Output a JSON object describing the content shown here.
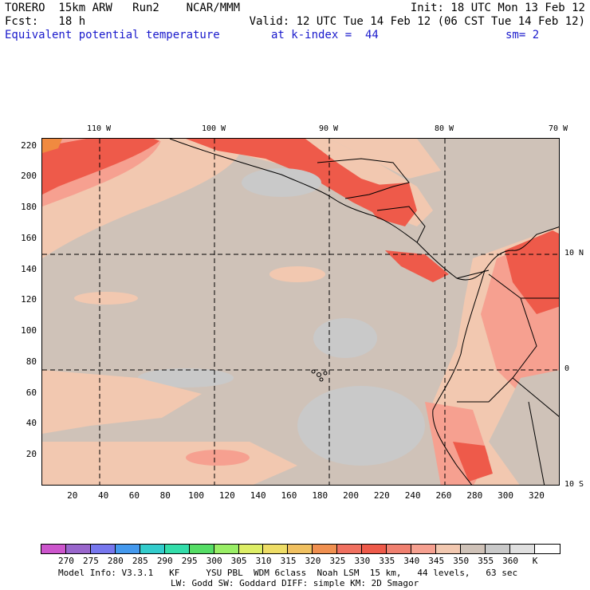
{
  "header": {
    "line1_left": "TORERO  15km ARW   Run2    NCAR/MMM",
    "line1_right": "Init: 18 UTC Mon 13 Feb 12",
    "line2_left": "Fcst:   18 h",
    "line2_right": "Valid: 12 UTC Tue 14 Feb 12 (06 CST Tue 14 Feb 12)",
    "field": "Equivalent potential temperature",
    "level": "at k-index =  44",
    "smooth": "sm= 2"
  },
  "map": {
    "top_lon_labels": [
      "110 W",
      "100 W",
      "90 W",
      "80 W",
      "70 W"
    ],
    "right_lat_labels": [
      "10 N",
      "0",
      "10 S"
    ],
    "left_grid_labels": [
      "220",
      "200",
      "180",
      "160",
      "140",
      "120",
      "100",
      "80",
      "60",
      "40",
      "20"
    ],
    "bottom_grid_labels": [
      "20",
      "40",
      "60",
      "80",
      "100",
      "120",
      "140",
      "160",
      "180",
      "200",
      "220",
      "240",
      "260",
      "280",
      "300",
      "320"
    ],
    "grid_x_range": [
      0,
      335
    ],
    "grid_y_range": [
      0,
      225
    ],
    "fill_colors": {
      "ocean_base": "#cfc2b8",
      "cool_gray": "#c9c9c9",
      "warm_light": "#f2c8b0",
      "warm_mid": "#f6a090",
      "warm_high": "#ee5a4a",
      "hot": "#f08a40"
    }
  },
  "colorbar": {
    "colors": [
      "#cc55cc",
      "#9966cc",
      "#7777ee",
      "#4499ee",
      "#33cccc",
      "#33ddaa",
      "#55dd66",
      "#99ee66",
      "#ddee66",
      "#eedd66",
      "#f0c060",
      "#f09050",
      "#f07060",
      "#ee5a4a",
      "#f08070",
      "#f6a090",
      "#f2c8b0",
      "#cfc2b8",
      "#c9c9c9",
      "#e0e0e0",
      "#ffffff"
    ],
    "labels": [
      "270",
      "275",
      "280",
      "285",
      "290",
      "295",
      "300",
      "305",
      "310",
      "315",
      "320",
      "325",
      "330",
      "335",
      "340",
      "345",
      "350",
      "355",
      "360",
      "K"
    ]
  },
  "footer": {
    "line1": "Model Info: V3.3.1   KF     YSU PBL  WDM 6class  Noah LSM  15 km,   44 levels,   63 sec",
    "line2": "LW: Godd SW: Goddard DIFF: simple KM: 2D Smagor"
  }
}
